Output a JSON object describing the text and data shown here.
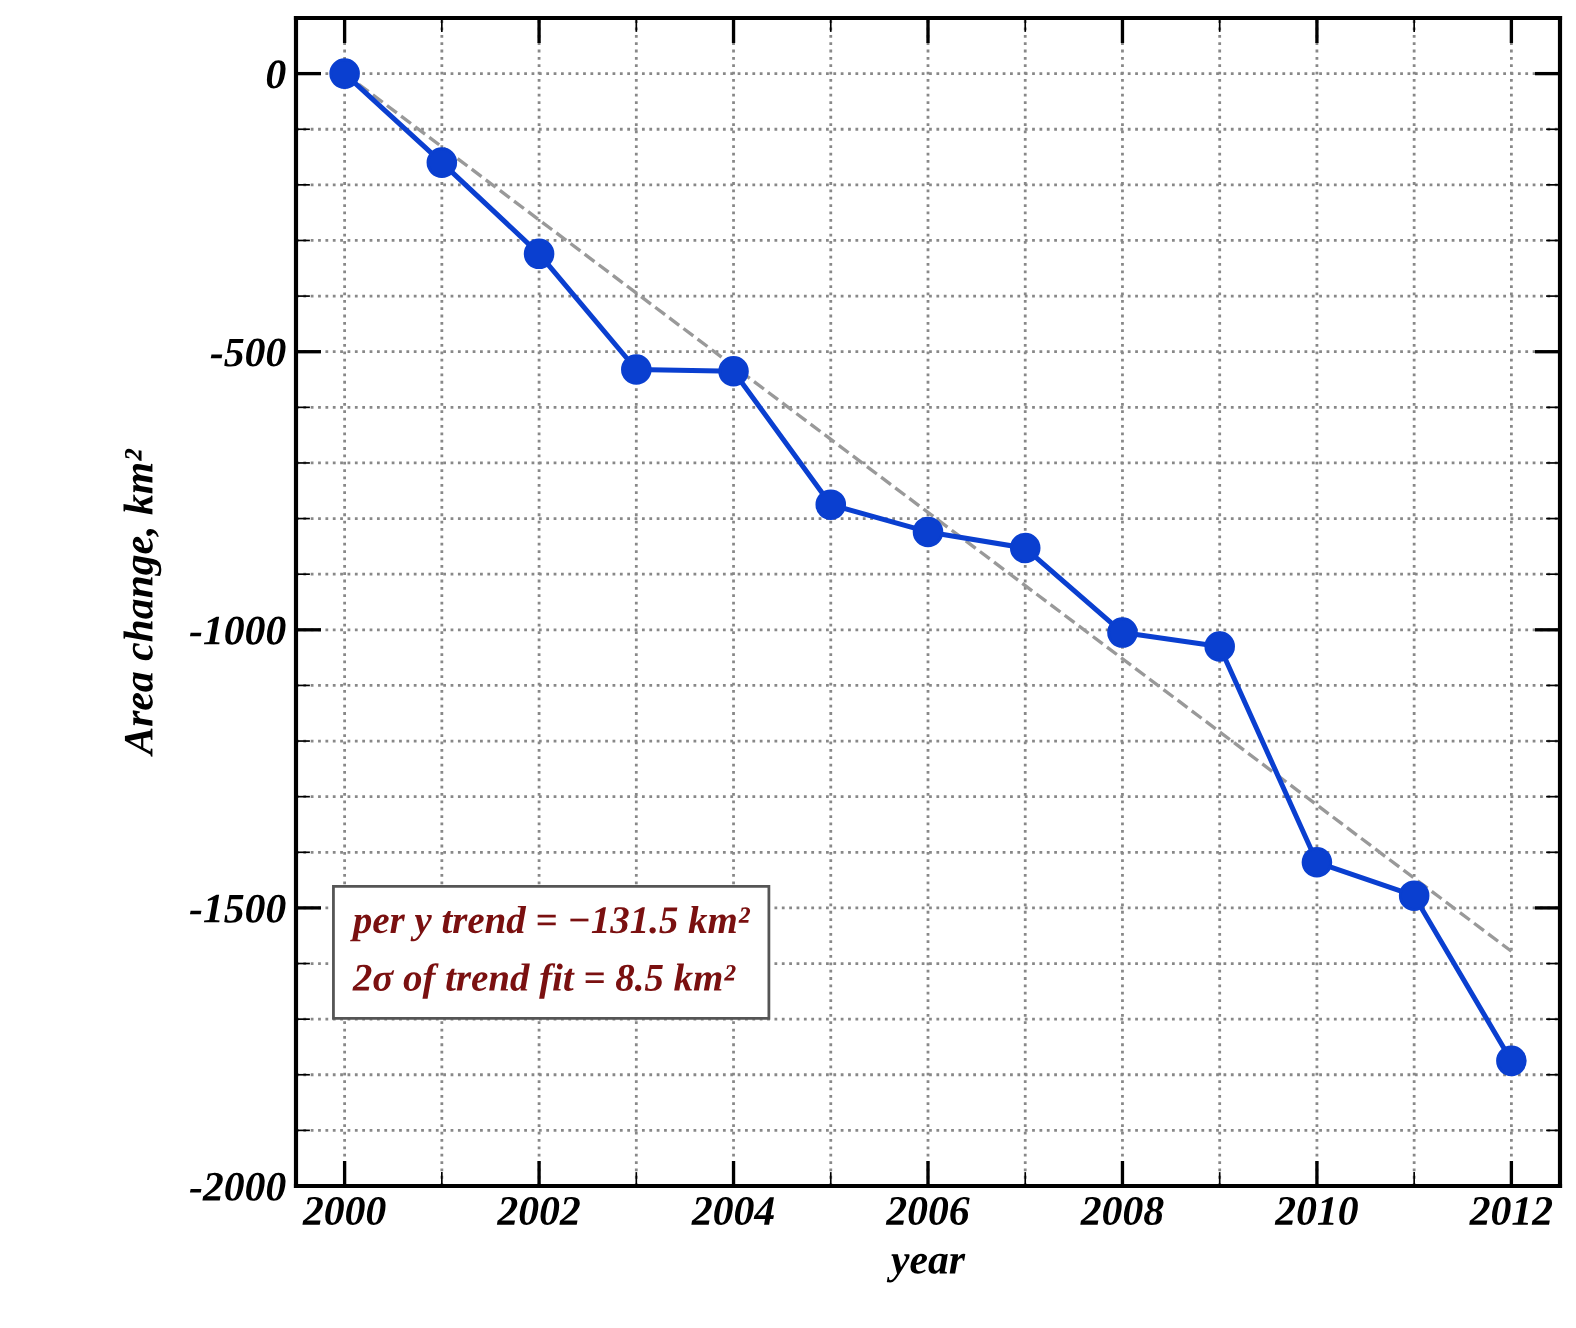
{
  "chart_data": {
    "type": "line",
    "xlabel": "year",
    "ylabel": "Area change, km²",
    "x": [
      2000,
      2001,
      2002,
      2003,
      2004,
      2005,
      2006,
      2007,
      2008,
      2009,
      2010,
      2011,
      2012
    ],
    "series": [
      {
        "color": "#0a3fd0",
        "marker": "circle",
        "line_style": "solid",
        "values": [
          0,
          -160,
          -324,
          -532,
          -535,
          -775,
          -824,
          -853,
          -1005,
          -1030,
          -1418,
          -1478,
          -1775
        ]
      },
      {
        "type": "line",
        "color": "#999999",
        "marker": "none",
        "line_style": "dashed",
        "x": [
          2000,
          2012
        ],
        "values": [
          0,
          -1578
        ]
      }
    ],
    "xlim": [
      1999.5,
      2012.5
    ],
    "xticks": [
      2000,
      2002,
      2004,
      2006,
      2008,
      2010,
      2012
    ],
    "ylim": [
      -2000,
      100
    ],
    "yticks": [
      -2000,
      -1500,
      -1000,
      -500,
      0
    ],
    "grid": true,
    "legend": false,
    "annotations": [
      "per y trend = −131.5 km²\n2σ of trend fit = 8.5 km²"
    ]
  }
}
